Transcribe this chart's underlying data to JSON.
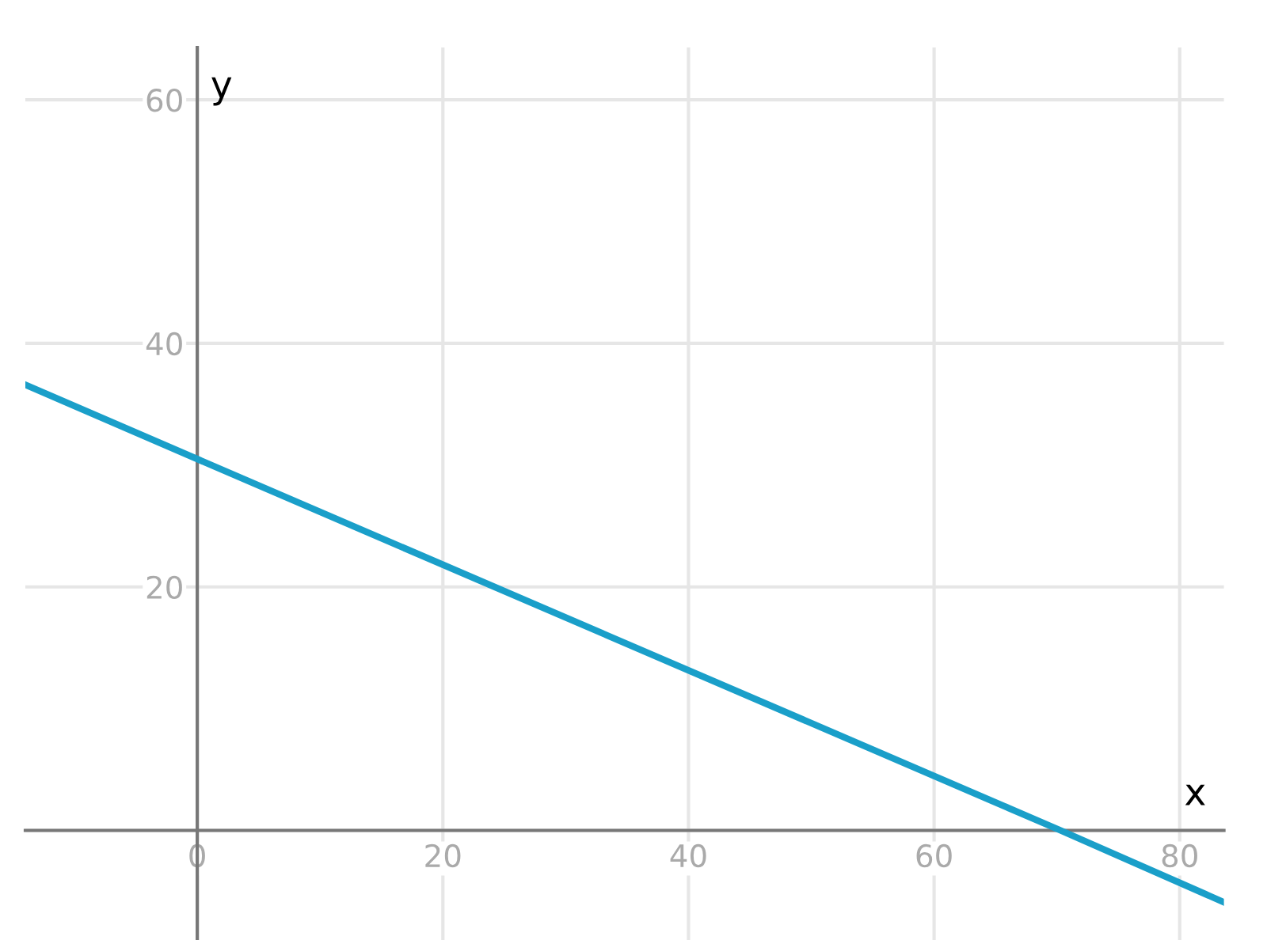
{
  "chart_data": {
    "type": "line",
    "xlabel": "x",
    "ylabel": "y",
    "x": [
      -14,
      0,
      70.3,
      83.6
    ],
    "series": [
      {
        "color": "#1a9fc9",
        "values": [
          36.6,
          30.5,
          0,
          -5.9
        ]
      }
    ],
    "xlim": [
      -14,
      83.6
    ],
    "ylim": [
      -9,
      64.3
    ],
    "xticks": [
      0,
      20,
      40,
      60,
      80
    ],
    "yticks": [
      {
        "value": 0,
        "label": null
      },
      20,
      40,
      60
    ],
    "grid": true,
    "marker": "none",
    "line_style": "solid"
  }
}
